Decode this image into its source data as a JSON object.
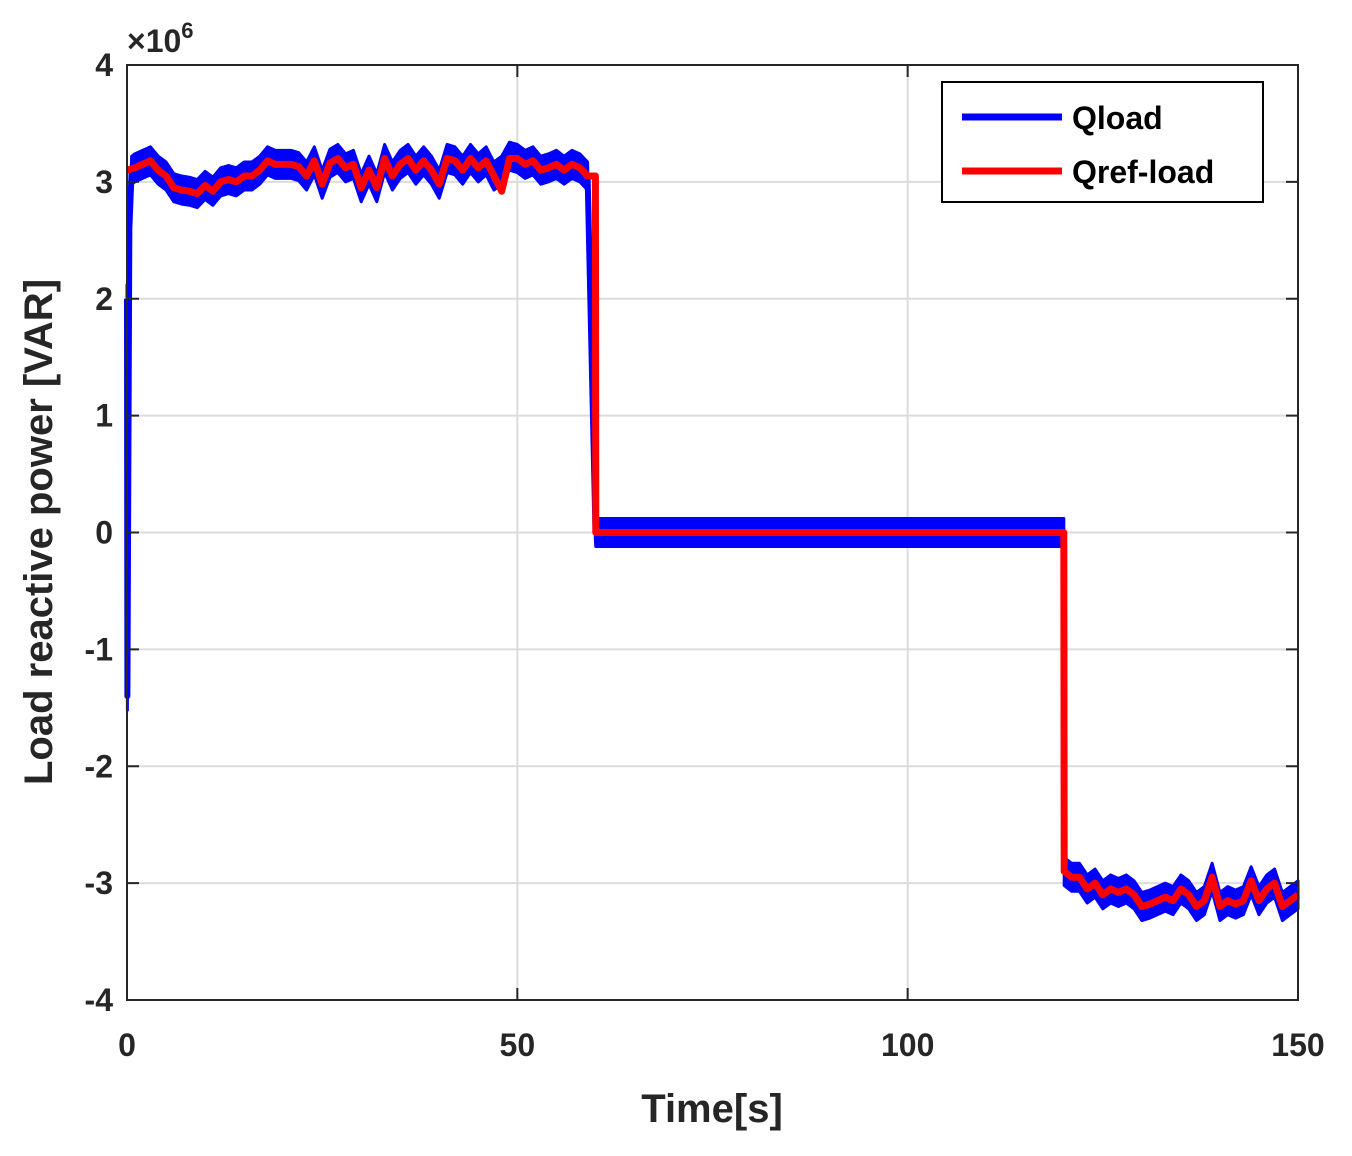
{
  "chart_data": {
    "type": "line",
    "title": "",
    "xlabel": "Time[s]",
    "ylabel": "Load reactive power [VAR]",
    "xlim": [
      0,
      150
    ],
    "ylim": [
      -4,
      4
    ],
    "y_exponent_label": "×10",
    "y_exponent_power": "6",
    "grid": true,
    "legend_position": "top-right",
    "x_ticks": [
      0,
      50,
      100,
      150
    ],
    "x_tick_labels": [
      "0",
      "50",
      "100",
      "150"
    ],
    "y_ticks": [
      -4,
      -3,
      -2,
      -1,
      0,
      1,
      2,
      3,
      4
    ],
    "y_tick_labels": [
      "-4",
      "-3",
      "-2",
      "-1",
      "0",
      "1",
      "2",
      "3",
      "4"
    ],
    "series": [
      {
        "name": "Qload",
        "color": "#0000ff",
        "noise_band": 0.12,
        "x": [
          0,
          0.05,
          0.3,
          0.6,
          1,
          2,
          3,
          4,
          5,
          6,
          7,
          8,
          9,
          10,
          11,
          12,
          13,
          14,
          15,
          16,
          17,
          18,
          19,
          20,
          21,
          22,
          23,
          24,
          25,
          26,
          27,
          28,
          29,
          30,
          31,
          32,
          33,
          34,
          35,
          36,
          37,
          38,
          39,
          40,
          41,
          42,
          43,
          44,
          45,
          46,
          47,
          48,
          49,
          50,
          51,
          52,
          53,
          54,
          55,
          56,
          57,
          58,
          59,
          60,
          60.05,
          61,
          120,
          120.05,
          121,
          122,
          123,
          124,
          125,
          126,
          127,
          128,
          129,
          130,
          131,
          132,
          133,
          134,
          135,
          136,
          137,
          138,
          139,
          140,
          141,
          142,
          143,
          144,
          145,
          146,
          147,
          148,
          149,
          150
        ],
        "values": [
          2.0,
          -1.4,
          2.6,
          3.1,
          3.12,
          3.15,
          3.18,
          3.1,
          3.05,
          2.95,
          2.93,
          2.92,
          2.9,
          2.97,
          2.92,
          3.0,
          3.02,
          3.0,
          3.05,
          3.05,
          3.1,
          3.18,
          3.15,
          3.15,
          3.15,
          3.13,
          3.05,
          3.18,
          2.98,
          3.16,
          3.2,
          3.12,
          3.15,
          2.95,
          3.1,
          2.95,
          3.2,
          3.05,
          3.15,
          3.2,
          3.1,
          3.18,
          3.1,
          2.98,
          3.2,
          3.18,
          3.1,
          3.2,
          3.12,
          3.18,
          3.05,
          3.1,
          3.22,
          3.2,
          3.15,
          3.18,
          3.1,
          3.12,
          3.15,
          3.1,
          3.15,
          3.12,
          3.05,
          0.05,
          0.0,
          0.0,
          0.0,
          -2.9,
          -2.95,
          -2.95,
          -3.05,
          -3.0,
          -3.1,
          -3.05,
          -3.08,
          -3.05,
          -3.1,
          -3.2,
          -3.18,
          -3.15,
          -3.12,
          -3.15,
          -3.05,
          -3.1,
          -3.2,
          -3.15,
          -2.95,
          -3.2,
          -3.15,
          -3.18,
          -3.15,
          -2.98,
          -3.15,
          -3.05,
          -3.0,
          -3.2,
          -3.15,
          -3.1
        ]
      },
      {
        "name": "Qref-load",
        "color": "#ff0000",
        "noise_band": 0,
        "x": [
          0,
          1,
          2,
          3,
          4,
          5,
          6,
          7,
          8,
          9,
          10,
          11,
          12,
          13,
          14,
          15,
          16,
          17,
          18,
          19,
          20,
          21,
          22,
          23,
          24,
          25,
          26,
          27,
          28,
          29,
          30,
          31,
          32,
          33,
          34,
          35,
          36,
          37,
          38,
          39,
          40,
          41,
          42,
          43,
          44,
          45,
          46,
          47,
          48,
          49,
          50,
          51,
          52,
          53,
          54,
          55,
          56,
          57,
          58,
          59,
          60,
          60.05,
          120,
          120.05,
          121,
          122,
          123,
          124,
          125,
          126,
          127,
          128,
          129,
          130,
          131,
          132,
          133,
          134,
          135,
          136,
          137,
          138,
          139,
          140,
          141,
          142,
          143,
          144,
          145,
          146,
          147,
          148,
          149,
          150
        ],
        "values": [
          3.1,
          3.12,
          3.15,
          3.18,
          3.1,
          3.05,
          2.95,
          2.93,
          2.92,
          2.9,
          2.97,
          2.92,
          3.0,
          3.02,
          3.0,
          3.05,
          3.05,
          3.1,
          3.18,
          3.15,
          3.15,
          3.15,
          3.13,
          3.05,
          3.18,
          2.98,
          3.16,
          3.2,
          3.12,
          3.15,
          2.95,
          3.1,
          2.95,
          3.2,
          3.05,
          3.15,
          3.2,
          3.1,
          3.18,
          3.1,
          2.98,
          3.2,
          3.18,
          3.1,
          3.2,
          3.12,
          3.18,
          3.05,
          2.92,
          3.2,
          3.2,
          3.15,
          3.18,
          3.1,
          3.12,
          3.15,
          3.1,
          3.15,
          3.12,
          3.05,
          3.05,
          0.0,
          0.0,
          -2.9,
          -2.95,
          -2.95,
          -3.05,
          -3.0,
          -3.1,
          -3.05,
          -3.08,
          -3.05,
          -3.1,
          -3.2,
          -3.18,
          -3.15,
          -3.12,
          -3.15,
          -3.05,
          -3.1,
          -3.2,
          -3.15,
          -2.95,
          -3.2,
          -3.15,
          -3.18,
          -3.15,
          -2.98,
          -3.15,
          -3.05,
          -3.0,
          -3.2,
          -3.15,
          -3.1
        ]
      }
    ]
  }
}
